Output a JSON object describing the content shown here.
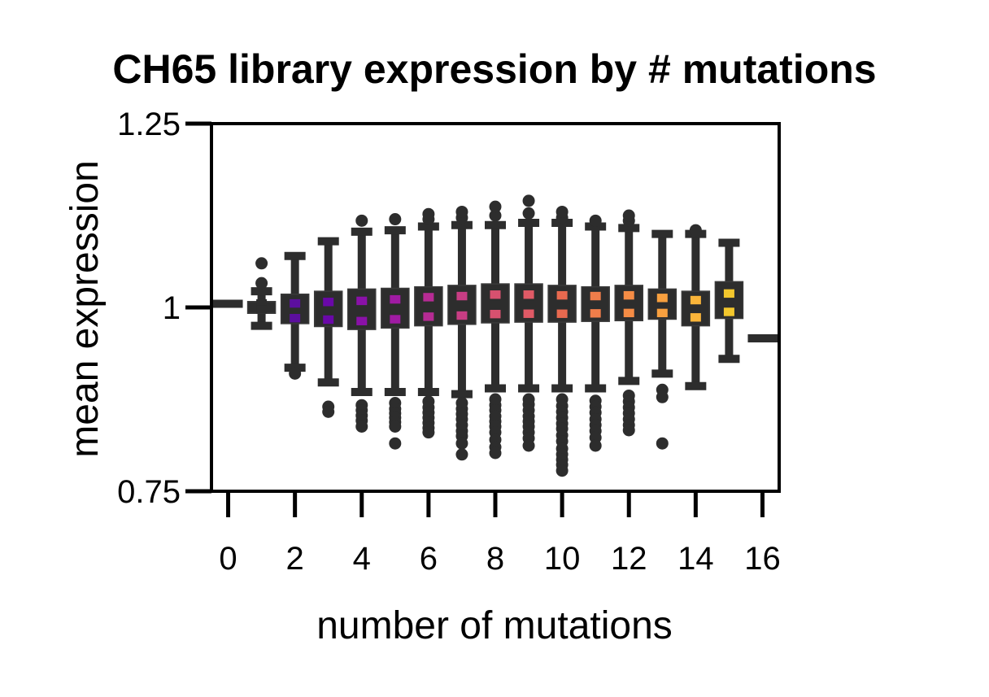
{
  "chart_data": {
    "type": "box",
    "title": "CH65 library expression by # mutations",
    "xlabel": "number of mutations",
    "ylabel": "mean expression",
    "ylim": [
      0.75,
      1.25
    ],
    "xlim": [
      -0.5,
      16.5
    ],
    "y_ticks": [
      {
        "value": 0.75,
        "label": "0.75"
      },
      {
        "value": 1.0,
        "label": "1"
      },
      {
        "value": 1.25,
        "label": "1.25"
      }
    ],
    "x_ticks": [
      0,
      2,
      4,
      6,
      8,
      10,
      12,
      14,
      16
    ],
    "x_tick_labels": [
      "0",
      "2",
      "4",
      "6",
      "8",
      "10",
      "12",
      "14",
      "16"
    ],
    "grid": false,
    "legend": "none",
    "groups": [
      {
        "x": 0,
        "flat": 1.005
      },
      {
        "x": 1,
        "whisker_low": 0.975,
        "q1": 0.992,
        "median": 1.0,
        "q3": 1.008,
        "whisker_high": 1.022,
        "outliers": [
          1.033,
          1.06
        ],
        "color": "#2d2d2d"
      },
      {
        "x": 2,
        "whisker_low": 0.918,
        "q1": 0.978,
        "median": 0.99,
        "q3": 1.018,
        "whisker_high": 1.07,
        "outliers": [
          0.91
        ],
        "color": "#5c0f9e"
      },
      {
        "x": 3,
        "whisker_low": 0.898,
        "q1": 0.974,
        "median": 0.99,
        "q3": 1.022,
        "whisker_high": 1.09,
        "outliers": [
          0.865,
          0.858
        ],
        "color": "#6a08a8"
      },
      {
        "x": 4,
        "whisker_low": 0.885,
        "q1": 0.97,
        "median": 0.99,
        "q3": 1.025,
        "whisker_high": 1.103,
        "outliers": [
          0.867,
          0.86,
          0.853,
          0.846,
          0.838,
          1.118
        ],
        "color": "#8a11a8"
      },
      {
        "x": 5,
        "whisker_low": 0.885,
        "q1": 0.972,
        "median": 0.993,
        "q3": 1.026,
        "whisker_high": 1.105,
        "outliers": [
          0.87,
          0.862,
          0.856,
          0.85,
          0.844,
          0.838,
          0.815,
          1.12
        ],
        "color": "#a01ba3"
      },
      {
        "x": 6,
        "whisker_low": 0.885,
        "q1": 0.975,
        "median": 0.997,
        "q3": 1.028,
        "whisker_high": 1.11,
        "outliers": [
          0.872,
          0.864,
          0.857,
          0.85,
          0.843,
          0.836,
          0.83,
          1.12,
          1.127
        ],
        "color": "#b62b94"
      },
      {
        "x": 7,
        "whisker_low": 0.882,
        "q1": 0.977,
        "median": 0.998,
        "q3": 1.03,
        "whisker_high": 1.112,
        "outliers": [
          0.87,
          0.862,
          0.855,
          0.848,
          0.84,
          0.832,
          0.825,
          0.815,
          0.8,
          1.122,
          1.13
        ],
        "color": "#c83d84"
      },
      {
        "x": 8,
        "whisker_low": 0.89,
        "q1": 0.979,
        "median": 1.0,
        "q3": 1.032,
        "whisker_high": 1.112,
        "outliers": [
          0.875,
          0.867,
          0.86,
          0.852,
          0.845,
          0.838,
          0.83,
          0.82,
          0.81,
          0.802,
          1.125,
          1.137
        ],
        "color": "#d7516f"
      },
      {
        "x": 9,
        "whisker_low": 0.89,
        "q1": 0.98,
        "median": 1.0,
        "q3": 1.032,
        "whisker_high": 1.115,
        "outliers": [
          0.875,
          0.868,
          0.86,
          0.852,
          0.845,
          0.838,
          0.83,
          0.822,
          0.812,
          1.128,
          1.145
        ],
        "color": "#e05a66"
      },
      {
        "x": 10,
        "whisker_low": 0.89,
        "q1": 0.98,
        "median": 1.0,
        "q3": 1.03,
        "whisker_high": 1.115,
        "outliers": [
          0.875,
          0.866,
          0.858,
          0.85,
          0.842,
          0.835,
          0.826,
          0.818,
          0.808,
          0.8,
          0.793,
          0.786,
          0.778,
          1.122,
          1.13
        ],
        "color": "#e8694f"
      },
      {
        "x": 11,
        "whisker_low": 0.89,
        "q1": 0.981,
        "median": 1.0,
        "q3": 1.028,
        "whisker_high": 1.11,
        "outliers": [
          0.873,
          0.865,
          0.857,
          0.848,
          0.84,
          0.832,
          0.823,
          0.812,
          1.118
        ],
        "color": "#f07d4a"
      },
      {
        "x": 12,
        "whisker_low": 0.9,
        "q1": 0.982,
        "median": 1.0,
        "q3": 1.03,
        "whisker_high": 1.108,
        "outliers": [
          0.88,
          0.872,
          0.864,
          0.856,
          0.848,
          0.84,
          0.833,
          1.118,
          1.125
        ],
        "color": "#f58c45"
      },
      {
        "x": 13,
        "whisker_low": 0.91,
        "q1": 0.984,
        "median": 0.998,
        "q3": 1.025,
        "whisker_high": 1.1,
        "outliers": [
          0.888,
          0.878,
          0.815
        ],
        "color": "#f8a03f"
      },
      {
        "x": 14,
        "whisker_low": 0.893,
        "q1": 0.975,
        "median": 0.995,
        "q3": 1.022,
        "whisker_high": 1.1,
        "outliers": [
          1.105
        ],
        "color": "#fbb53a"
      },
      {
        "x": 15,
        "whisker_low": 0.93,
        "q1": 0.985,
        "median": 1.0,
        "q3": 1.035,
        "whisker_high": 1.088,
        "outliers": [],
        "color": "#f3c72d"
      },
      {
        "x": 16,
        "flat": 0.958
      }
    ]
  }
}
